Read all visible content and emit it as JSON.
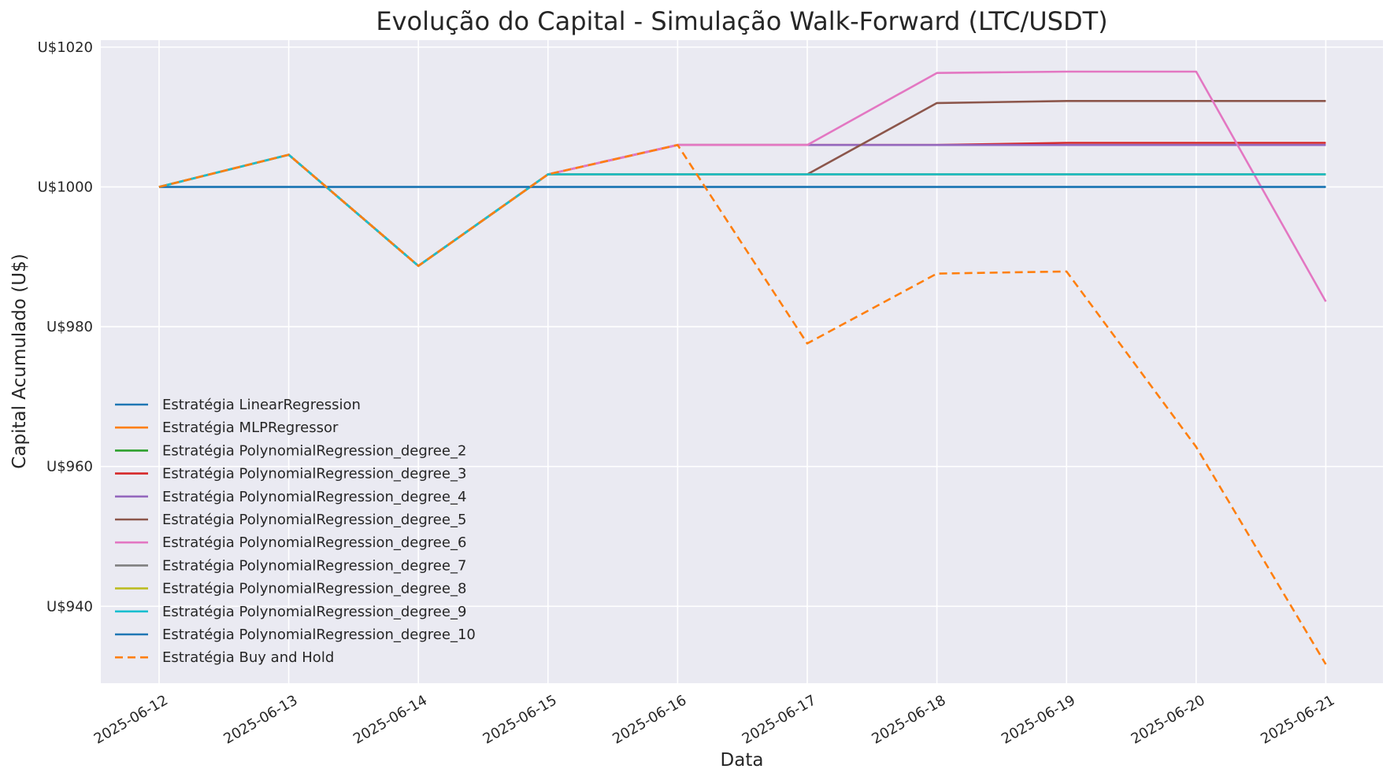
{
  "chart_data": {
    "type": "line",
    "title": "Evolução do Capital - Simulação Walk-Forward (LTC/USDT)",
    "xlabel": "Data",
    "ylabel": "Capital Acumulado (U$)",
    "x": [
      "2025-06-12",
      "2025-06-13",
      "2025-06-14",
      "2025-06-15",
      "2025-06-16",
      "2025-06-17",
      "2025-06-18",
      "2025-06-19",
      "2025-06-20",
      "2025-06-21"
    ],
    "x_tick_labels": [
      "2025-06-12",
      "2025-06-13",
      "2025-06-14",
      "2025-06-15",
      "2025-06-16",
      "2025-06-17",
      "2025-06-18",
      "2025-06-19",
      "2025-06-20",
      "2025-06-21"
    ],
    "ylim": [
      929,
      1021
    ],
    "y_ticks": [
      940,
      960,
      980,
      1000,
      1020
    ],
    "y_tick_labels": [
      "U$940",
      "U$960",
      "U$980",
      "U$1000",
      "U$1020"
    ],
    "grid": true,
    "background_color": "#eaeaf2",
    "legend_position": "lower-left",
    "series": [
      {
        "name": "Estratégia LinearRegression",
        "color": "#1f77b4",
        "dash": "solid",
        "values": [
          1000,
          1000,
          1000,
          1000,
          1000,
          1000,
          1000,
          1000,
          1000,
          1000
        ]
      },
      {
        "name": "Estratégia MLPRegressor",
        "color": "#ff7f0e",
        "dash": "solid",
        "values": [
          1000,
          1004.6,
          988.7,
          1001.8,
          1001.8,
          1001.8,
          1001.8,
          1001.8,
          1001.8,
          1001.8
        ]
      },
      {
        "name": "Estratégia PolynomialRegression_degree_2",
        "color": "#2ca02c",
        "dash": "solid",
        "values": [
          1000,
          1004.6,
          988.7,
          1001.8,
          1001.8,
          1001.8,
          1001.8,
          1001.8,
          1001.8,
          1001.8
        ]
      },
      {
        "name": "Estratégia PolynomialRegression_degree_3",
        "color": "#d62728",
        "dash": "solid",
        "values": [
          1000,
          1004.6,
          988.7,
          1001.8,
          1006.0,
          1006.0,
          1006.0,
          1006.3,
          1006.3,
          1006.3
        ]
      },
      {
        "name": "Estratégia PolynomialRegression_degree_4",
        "color": "#9467bd",
        "dash": "solid",
        "values": [
          1000,
          1004.6,
          988.7,
          1001.8,
          1006.0,
          1006.0,
          1006.0,
          1006.0,
          1006.0,
          1006.0
        ]
      },
      {
        "name": "Estratégia PolynomialRegression_degree_5",
        "color": "#8c564b",
        "dash": "solid",
        "values": [
          1000,
          1004.6,
          988.7,
          1001.8,
          1001.8,
          1001.8,
          1012.0,
          1012.3,
          1012.3,
          1012.3
        ]
      },
      {
        "name": "Estratégia PolynomialRegression_degree_6",
        "color": "#e377c2",
        "dash": "solid",
        "values": [
          1000,
          1004.6,
          988.7,
          1001.8,
          1006.0,
          1006.0,
          1016.3,
          1016.5,
          1016.5,
          983.6
        ]
      },
      {
        "name": "Estratégia PolynomialRegression_degree_7",
        "color": "#7f7f7f",
        "dash": "solid",
        "values": [
          1000,
          1004.6,
          988.7,
          1001.8,
          1001.8,
          1001.8,
          1001.8,
          1001.8,
          1001.8,
          1001.8
        ]
      },
      {
        "name": "Estratégia PolynomialRegression_degree_8",
        "color": "#bcbd22",
        "dash": "solid",
        "values": [
          1000,
          1004.6,
          988.7,
          1001.8,
          1001.8,
          1001.8,
          1001.8,
          1001.8,
          1001.8,
          1001.8
        ]
      },
      {
        "name": "Estratégia PolynomialRegression_degree_9",
        "color": "#17becf",
        "dash": "solid",
        "values": [
          1000,
          1004.6,
          988.7,
          1001.8,
          1001.8,
          1001.8,
          1001.8,
          1001.8,
          1001.8,
          1001.8
        ]
      },
      {
        "name": "Estratégia PolynomialRegression_degree_10",
        "color": "#1f77b4",
        "dash": "solid",
        "values": [
          1000,
          1000,
          1000,
          1000,
          1000,
          1000,
          1000,
          1000,
          1000,
          1000
        ]
      },
      {
        "name": "Estratégia Buy and Hold",
        "color": "#ff7f0e",
        "dash": "dashed",
        "values": [
          1000,
          1004.6,
          988.7,
          1001.8,
          1006.0,
          977.6,
          987.6,
          987.9,
          962.8,
          931.7
        ]
      }
    ]
  }
}
